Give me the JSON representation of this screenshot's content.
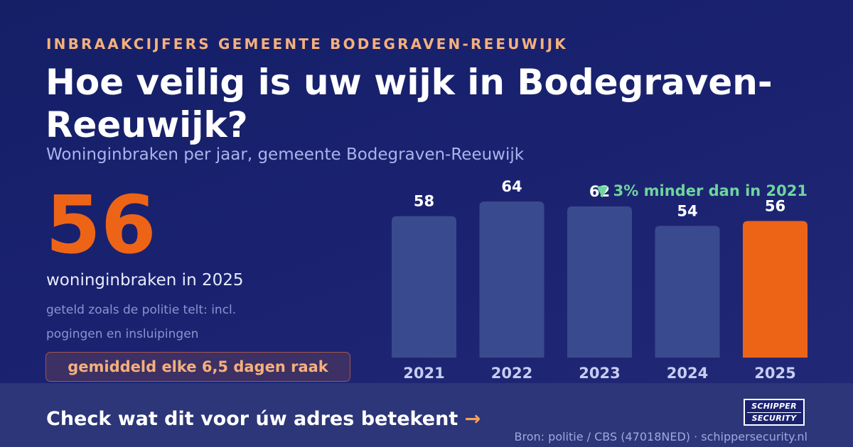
{
  "header": {
    "eyebrow": "INBRAAKCIJFERS GEMEENTE BODEGRAVEN-REEUWIJK",
    "title": "Hoe veilig is uw wijk in Bodegraven-Reeuwijk?",
    "subtitle": "Woninginbraken per jaar, gemeente Bodegraven-Reeuwijk"
  },
  "highlight": {
    "value": "56",
    "caption": "woninginbraken in 2025",
    "note": "geteld zoals de politie telt: incl. pogingen en insluipingen",
    "frequency": "gemiddeld elke 6,5 dagen raak"
  },
  "change_note": "▼ 3% minder dan in 2021",
  "chart_data": {
    "type": "bar",
    "categories": [
      "2021",
      "2022",
      "2023",
      "2024",
      "2025"
    ],
    "values": [
      58,
      64,
      62,
      54,
      56
    ],
    "highlight_category": "2025",
    "ylim": [
      0,
      64
    ],
    "grid": false,
    "colors": {
      "bar": "#3a4a8e",
      "highlight": "#ee6417",
      "value_label": "#ffffff",
      "category_label": "#c7cdf2"
    }
  },
  "footer": {
    "cta": "Check wat dit voor úw adres betekent",
    "cta_arrow": "→",
    "logo_line1": "SCHIPPER",
    "logo_line2": "SECURITY",
    "source": "Bron: politie / CBS (47018NED) · schippersecurity.nl"
  }
}
